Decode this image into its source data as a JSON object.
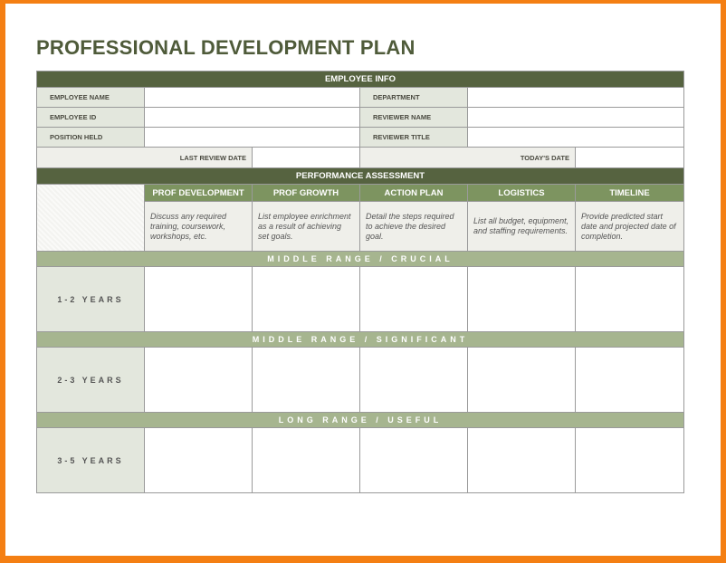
{
  "title": "PROFESSIONAL DEVELOPMENT PLAN",
  "employee_info": {
    "header": "EMPLOYEE INFO",
    "employee_name": "EMPLOYEE NAME",
    "department": "DEPARTMENT",
    "employee_id": "EMPLOYEE ID",
    "reviewer_name": "REVIEWER NAME",
    "position_held": "POSITION HELD",
    "reviewer_title": "REVIEWER TITLE",
    "last_review_date": "LAST REVIEW DATE",
    "todays_date": "TODAY'S DATE"
  },
  "assessment": {
    "header": "PERFORMANCE ASSESSMENT",
    "columns": [
      {
        "label": "PROF DEVELOPMENT",
        "desc": "Discuss any required training, coursework, workshops, etc."
      },
      {
        "label": "PROF GROWTH",
        "desc": "List employee enrichment as a result of achieving set goals."
      },
      {
        "label": "ACTION PLAN",
        "desc": "Detail the steps required to achieve the desired goal."
      },
      {
        "label": "LOGISTICS",
        "desc": "List all budget, equipment, and staffing requirements."
      },
      {
        "label": "TIMELINE",
        "desc": "Provide predicted start date and projected date of completion."
      }
    ],
    "sections": [
      {
        "band": "MIDDLE RANGE / CRUCIAL",
        "years": "1-2 YEARS"
      },
      {
        "band": "MIDDLE RANGE / SIGNIFICANT",
        "years": "2-3 YEARS"
      },
      {
        "band": "LONG RANGE / USEFUL",
        "years": "3-5 YEARS"
      }
    ]
  },
  "colors": {
    "frame": "#f47f13",
    "header": "#566340",
    "column_header": "#7d9460",
    "band": "#a6b58f"
  }
}
